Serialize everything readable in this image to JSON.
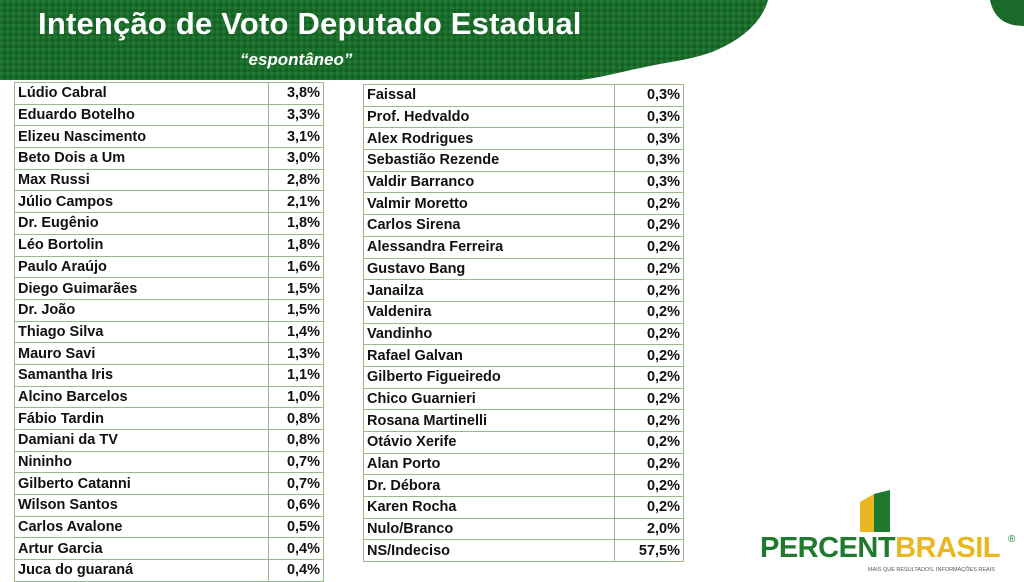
{
  "header": {
    "title": "Intenção de Voto Deputado Estadual",
    "subtitle": "“espontâneo”"
  },
  "colors": {
    "banner_green": "#1a6b2a",
    "border_green": "#9bb88d",
    "brand_green": "#1f7a2d",
    "brand_yellow": "#e9b820"
  },
  "left_table": [
    {
      "name": "Lúdio Cabral",
      "pct": "3,8%"
    },
    {
      "name": "Eduardo Botelho",
      "pct": "3,3%"
    },
    {
      "name": "Elizeu Nascimento",
      "pct": "3,1%"
    },
    {
      "name": "Beto Dois a Um",
      "pct": "3,0%"
    },
    {
      "name": "Max Russi",
      "pct": "2,8%"
    },
    {
      "name": "Júlio Campos",
      "pct": "2,1%"
    },
    {
      "name": "Dr. Eugênio",
      "pct": "1,8%"
    },
    {
      "name": "Léo Bortolin",
      "pct": "1,8%"
    },
    {
      "name": "Paulo Araújo",
      "pct": "1,6%"
    },
    {
      "name": "Diego Guimarães",
      "pct": "1,5%"
    },
    {
      "name": "Dr. João",
      "pct": "1,5%"
    },
    {
      "name": "Thiago Silva",
      "pct": "1,4%"
    },
    {
      "name": "Mauro Savi",
      "pct": "1,3%"
    },
    {
      "name": "Samantha Iris",
      "pct": "1,1%"
    },
    {
      "name": "Alcino Barcelos",
      "pct": "1,0%"
    },
    {
      "name": "Fábio Tardin",
      "pct": "0,8%"
    },
    {
      "name": "Damiani da TV",
      "pct": "0,8%"
    },
    {
      "name": "Nininho",
      "pct": "0,7%"
    },
    {
      "name": "Gilberto Catanni",
      "pct": "0,7%"
    },
    {
      "name": "Wilson Santos",
      "pct": "0,6%"
    },
    {
      "name": "Carlos Avalone",
      "pct": "0,5%"
    },
    {
      "name": "Artur Garcia",
      "pct": "0,4%"
    },
    {
      "name": "Juca do guaraná",
      "pct": "0,4%"
    }
  ],
  "right_table": [
    {
      "name": "Faissal",
      "pct": "0,3%"
    },
    {
      "name": "Prof. Hedvaldo",
      "pct": "0,3%"
    },
    {
      "name": "Alex Rodrigues",
      "pct": "0,3%"
    },
    {
      "name": "Sebastião Rezende",
      "pct": "0,3%"
    },
    {
      "name": "Valdir Barranco",
      "pct": "0,3%"
    },
    {
      "name": "Valmir Moretto",
      "pct": "0,2%"
    },
    {
      "name": "Carlos Sirena",
      "pct": "0,2%"
    },
    {
      "name": "Alessandra Ferreira",
      "pct": "0,2%"
    },
    {
      "name": "Gustavo Bang",
      "pct": "0,2%"
    },
    {
      "name": "Janailza",
      "pct": "0,2%"
    },
    {
      "name": "Valdenira",
      "pct": "0,2%"
    },
    {
      "name": "Vandinho",
      "pct": "0,2%"
    },
    {
      "name": "Rafael Galvan",
      "pct": "0,2%"
    },
    {
      "name": "Gilberto Figueiredo",
      "pct": "0,2%"
    },
    {
      "name": "Chico Guarnieri",
      "pct": "0,2%"
    },
    {
      "name": "Rosana Martinelli",
      "pct": "0,2%"
    },
    {
      "name": "Otávio Xerife",
      "pct": "0,2%"
    },
    {
      "name": "Alan Porto",
      "pct": "0,2%"
    },
    {
      "name": "Dr. Débora",
      "pct": "0,2%"
    },
    {
      "name": "Karen Rocha",
      "pct": "0,2%"
    },
    {
      "name": "Nulo/Branco",
      "pct": "2,0%"
    },
    {
      "name": "NS/Indeciso",
      "pct": "57,5%"
    }
  ],
  "logo": {
    "part1": "PERCENT",
    "part2": "BRASIL",
    "registered": "®",
    "tagline": "MAIS QUE RESULTADOS, INFORMAÇÕES REAIS"
  }
}
